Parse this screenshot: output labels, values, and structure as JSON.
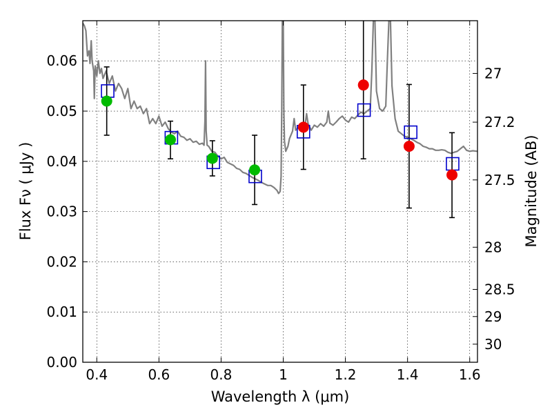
{
  "chart_data": {
    "type": "scatter",
    "xlabel": "Wavelength  λ (μm)",
    "ylabel": "Flux  Fν  ( μJy )",
    "y2label": "Magnitude (AB)",
    "xlim": [
      0.355,
      1.625
    ],
    "ylim": [
      0.0,
      0.068
    ],
    "grid": true,
    "x_ticks": [
      0.4,
      0.6,
      0.8,
      1.0,
      1.2,
      1.4,
      1.6
    ],
    "x_tick_labels": [
      "0.4",
      "0.6",
      "0.8",
      "1",
      "1.2",
      "1.4",
      "1.6"
    ],
    "y_ticks": [
      0.0,
      0.01,
      0.02,
      0.03,
      0.04,
      0.05,
      0.06
    ],
    "y_tick_labels": [
      "0.00",
      "0.01",
      "0.02",
      "0.03",
      "0.04",
      "0.05",
      "0.06"
    ],
    "y2_ticks": [
      {
        "label": "27",
        "flux": 0.0575
      },
      {
        "label": "27.2",
        "flux": 0.0478
      },
      {
        "label": "27.5",
        "flux": 0.0363
      },
      {
        "label": "28",
        "flux": 0.0229
      },
      {
        "label": "28.5",
        "flux": 0.0145
      },
      {
        "label": "29",
        "flux": 0.0091
      },
      {
        "label": "30",
        "flux": 0.0036
      }
    ],
    "series": [
      {
        "kind": "spectrum",
        "color": "#808080",
        "points": [
          [
            0.355,
            0.0675
          ],
          [
            0.36,
            0.067
          ],
          [
            0.365,
            0.066
          ],
          [
            0.37,
            0.061
          ],
          [
            0.375,
            0.062
          ],
          [
            0.378,
            0.0595
          ],
          [
            0.382,
            0.064
          ],
          [
            0.385,
            0.06
          ],
          [
            0.39,
            0.058
          ],
          [
            0.392,
            0.0525
          ],
          [
            0.395,
            0.059
          ],
          [
            0.4,
            0.057
          ],
          [
            0.405,
            0.06
          ],
          [
            0.41,
            0.0575
          ],
          [
            0.415,
            0.0585
          ],
          [
            0.42,
            0.0565
          ],
          [
            0.43,
            0.058
          ],
          [
            0.44,
            0.0555
          ],
          [
            0.45,
            0.057
          ],
          [
            0.46,
            0.054
          ],
          [
            0.47,
            0.0555
          ],
          [
            0.48,
            0.0545
          ],
          [
            0.49,
            0.0525
          ],
          [
            0.5,
            0.0545
          ],
          [
            0.51,
            0.0505
          ],
          [
            0.52,
            0.052
          ],
          [
            0.53,
            0.0505
          ],
          [
            0.54,
            0.051
          ],
          [
            0.55,
            0.0495
          ],
          [
            0.56,
            0.0505
          ],
          [
            0.57,
            0.0475
          ],
          [
            0.58,
            0.0485
          ],
          [
            0.59,
            0.0475
          ],
          [
            0.6,
            0.049
          ],
          [
            0.61,
            0.047
          ],
          [
            0.62,
            0.0478
          ],
          [
            0.63,
            0.0465
          ],
          [
            0.64,
            0.0458
          ],
          [
            0.65,
            0.0455
          ],
          [
            0.66,
            0.046
          ],
          [
            0.67,
            0.045
          ],
          [
            0.68,
            0.0448
          ],
          [
            0.69,
            0.0442
          ],
          [
            0.7,
            0.0445
          ],
          [
            0.71,
            0.0438
          ],
          [
            0.72,
            0.044
          ],
          [
            0.73,
            0.0434
          ],
          [
            0.74,
            0.0436
          ],
          [
            0.745,
            0.0432
          ],
          [
            0.748,
            0.048
          ],
          [
            0.75,
            0.06
          ],
          [
            0.752,
            0.046
          ],
          [
            0.755,
            0.0432
          ],
          [
            0.76,
            0.043
          ],
          [
            0.77,
            0.042
          ],
          [
            0.78,
            0.0418
          ],
          [
            0.79,
            0.041
          ],
          [
            0.8,
            0.0405
          ],
          [
            0.81,
            0.0408
          ],
          [
            0.82,
            0.0398
          ],
          [
            0.83,
            0.0395
          ],
          [
            0.84,
            0.0392
          ],
          [
            0.85,
            0.0386
          ],
          [
            0.86,
            0.0384
          ],
          [
            0.87,
            0.0378
          ],
          [
            0.88,
            0.0376
          ],
          [
            0.89,
            0.0372
          ],
          [
            0.9,
            0.0368
          ],
          [
            0.91,
            0.0365
          ],
          [
            0.92,
            0.0362
          ],
          [
            0.93,
            0.0358
          ],
          [
            0.94,
            0.0355
          ],
          [
            0.95,
            0.0352
          ],
          [
            0.96,
            0.0352
          ],
          [
            0.97,
            0.0348
          ],
          [
            0.98,
            0.0342
          ],
          [
            0.985,
            0.0336
          ],
          [
            0.99,
            0.034
          ],
          [
            0.993,
            0.037
          ],
          [
            0.995,
            0.05
          ],
          [
            0.997,
            0.068
          ],
          [
            1.0,
            0.068
          ],
          [
            1.002,
            0.05
          ],
          [
            1.004,
            0.044
          ],
          [
            1.008,
            0.042
          ],
          [
            1.015,
            0.043
          ],
          [
            1.02,
            0.0445
          ],
          [
            1.03,
            0.046
          ],
          [
            1.035,
            0.0485
          ],
          [
            1.04,
            0.0462
          ],
          [
            1.05,
            0.0468
          ],
          [
            1.06,
            0.0465
          ],
          [
            1.07,
            0.047
          ],
          [
            1.075,
            0.0495
          ],
          [
            1.08,
            0.0475
          ],
          [
            1.09,
            0.0462
          ],
          [
            1.1,
            0.0472
          ],
          [
            1.11,
            0.0468
          ],
          [
            1.12,
            0.0475
          ],
          [
            1.13,
            0.047
          ],
          [
            1.14,
            0.0478
          ],
          [
            1.145,
            0.05
          ],
          [
            1.15,
            0.0476
          ],
          [
            1.16,
            0.0472
          ],
          [
            1.17,
            0.0478
          ],
          [
            1.18,
            0.0485
          ],
          [
            1.19,
            0.049
          ],
          [
            1.2,
            0.0482
          ],
          [
            1.21,
            0.0478
          ],
          [
            1.22,
            0.0488
          ],
          [
            1.23,
            0.0485
          ],
          [
            1.24,
            0.0492
          ],
          [
            1.25,
            0.0498
          ],
          [
            1.26,
            0.0495
          ],
          [
            1.27,
            0.05
          ],
          [
            1.28,
            0.0505
          ],
          [
            1.285,
            0.058
          ],
          [
            1.29,
            0.068
          ],
          [
            1.295,
            0.068
          ],
          [
            1.3,
            0.054
          ],
          [
            1.31,
            0.0505
          ],
          [
            1.32,
            0.05
          ],
          [
            1.33,
            0.051
          ],
          [
            1.335,
            0.06
          ],
          [
            1.34,
            0.068
          ],
          [
            1.345,
            0.068
          ],
          [
            1.35,
            0.055
          ],
          [
            1.36,
            0.0485
          ],
          [
            1.37,
            0.046
          ],
          [
            1.38,
            0.0455
          ],
          [
            1.39,
            0.045
          ],
          [
            1.4,
            0.0448
          ],
          [
            1.41,
            0.0445
          ],
          [
            1.42,
            0.0442
          ],
          [
            1.43,
            0.0438
          ],
          [
            1.44,
            0.0435
          ],
          [
            1.45,
            0.043
          ],
          [
            1.46,
            0.0428
          ],
          [
            1.47,
            0.0425
          ],
          [
            1.48,
            0.0425
          ],
          [
            1.49,
            0.0422
          ],
          [
            1.5,
            0.0422
          ],
          [
            1.51,
            0.0423
          ],
          [
            1.52,
            0.0422
          ],
          [
            1.53,
            0.0418
          ],
          [
            1.54,
            0.0416
          ],
          [
            1.55,
            0.0418
          ],
          [
            1.56,
            0.042
          ],
          [
            1.57,
            0.0425
          ],
          [
            1.58,
            0.043
          ],
          [
            1.59,
            0.0422
          ],
          [
            1.6,
            0.042
          ],
          [
            1.61,
            0.0421
          ],
          [
            1.625,
            0.042
          ]
        ]
      },
      {
        "kind": "model-photometry",
        "marker": "open-square",
        "color": "#0000cc",
        "points": [
          [
            0.435,
            0.054
          ],
          [
            0.64,
            0.0447
          ],
          [
            0.775,
            0.0398
          ],
          [
            0.91,
            0.037
          ],
          [
            1.065,
            0.0459
          ],
          [
            1.26,
            0.0502
          ],
          [
            1.41,
            0.0458
          ],
          [
            1.545,
            0.0395
          ]
        ]
      },
      {
        "kind": "detections",
        "marker": "filled-circle",
        "color": "#00bb00",
        "points": [
          {
            "x": 0.432,
            "y": 0.052,
            "yerr_low": 0.0452,
            "yerr_high": 0.0588
          },
          {
            "x": 0.637,
            "y": 0.0443,
            "yerr_low": 0.0405,
            "yerr_high": 0.048
          },
          {
            "x": 0.772,
            "y": 0.0406,
            "yerr_low": 0.0371,
            "yerr_high": 0.0441
          },
          {
            "x": 0.908,
            "y": 0.0383,
            "yerr_low": 0.0314,
            "yerr_high": 0.0452
          }
        ]
      },
      {
        "kind": "detections-nir",
        "marker": "filled-circle",
        "color": "#ee0000",
        "points": [
          {
            "x": 1.065,
            "y": 0.0468,
            "yerr_low": 0.0384,
            "yerr_high": 0.0552
          },
          {
            "x": 1.258,
            "y": 0.0552,
            "yerr_low": 0.0405,
            "yerr_high": 0.0698
          },
          {
            "x": 1.405,
            "y": 0.043,
            "yerr_low": 0.0307,
            "yerr_high": 0.0553
          },
          {
            "x": 1.543,
            "y": 0.0373,
            "yerr_low": 0.0288,
            "yerr_high": 0.0457
          }
        ]
      }
    ]
  }
}
